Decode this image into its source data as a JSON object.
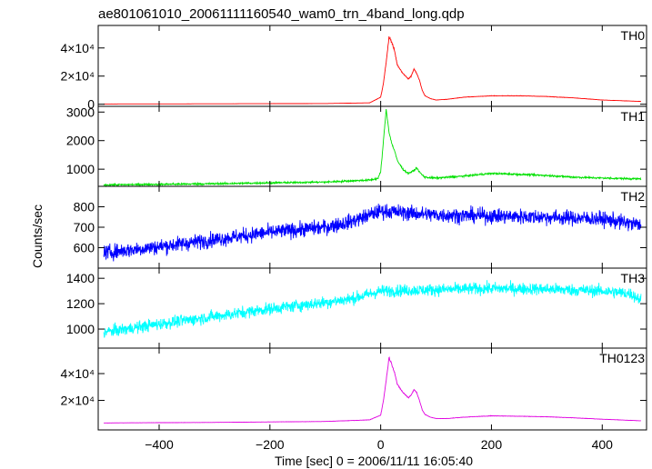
{
  "chart_data": {
    "type": "line",
    "title": "ae801061010_20061111160540_wam0_trn_4band_long.qdp",
    "xlabel": "Time [sec] 0 = 2006/11/11 16:05:40",
    "ylabel": "Counts/sec",
    "xlim": [
      -510,
      480
    ],
    "x_ticks": [
      -400,
      -200,
      0,
      200,
      400
    ],
    "x_tick_labels": [
      "−400",
      "−200",
      "0",
      "200",
      "400"
    ],
    "grid": false,
    "series": [
      {
        "name": "TH0",
        "color": "#ff0000",
        "ylim": [
          -1500,
          56000
        ],
        "y_ticks": [
          0,
          20000,
          40000
        ],
        "y_tick_labels": [
          "0",
          "2×10⁴",
          "4×10⁴"
        ],
        "noise": 0.02,
        "x": [
          -500,
          -300,
          -100,
          -20,
          0,
          5,
          10,
          15,
          20,
          25,
          30,
          40,
          50,
          55,
          60,
          65,
          70,
          75,
          80,
          90,
          100,
          120,
          150,
          200,
          250,
          300,
          350,
          400,
          470
        ],
        "values": [
          200,
          300,
          500,
          1000,
          5000,
          15000,
          30000,
          48000,
          44000,
          38000,
          28000,
          22000,
          18000,
          20000,
          25000,
          22000,
          17000,
          10000,
          6000,
          4000,
          3000,
          3500,
          5000,
          6000,
          6000,
          5500,
          4500,
          3000,
          2000
        ]
      },
      {
        "name": "TH1",
        "color": "#00e000",
        "ylim": [
          400,
          3200
        ],
        "y_ticks": [
          1000,
          2000,
          3000
        ],
        "y_tick_labels": [
          "1000",
          "2000",
          "3000"
        ],
        "noise": 30,
        "x": [
          -500,
          -300,
          -100,
          -20,
          -5,
          0,
          5,
          10,
          15,
          20,
          25,
          30,
          40,
          50,
          60,
          65,
          70,
          75,
          80,
          90,
          100,
          150,
          200,
          250,
          300,
          350,
          400,
          470
        ],
        "values": [
          450,
          490,
          550,
          620,
          680,
          900,
          2000,
          3100,
          2300,
          1900,
          1650,
          1300,
          1000,
          850,
          950,
          1050,
          900,
          800,
          720,
          700,
          690,
          760,
          850,
          820,
          780,
          720,
          690,
          660
        ]
      },
      {
        "name": "TH2",
        "color": "#0000ff",
        "ylim": [
          500,
          900
        ],
        "y_ticks": [
          600,
          700,
          800
        ],
        "y_tick_labels": [
          "600",
          "700",
          "800"
        ],
        "noise": 35,
        "x": [
          -500,
          -400,
          -300,
          -200,
          -100,
          -50,
          0,
          50,
          100,
          200,
          300,
          400,
          470
        ],
        "values": [
          575,
          605,
          640,
          675,
          700,
          730,
          780,
          770,
          760,
          755,
          750,
          740,
          710
        ]
      },
      {
        "name": "TH3",
        "color": "#00ffff",
        "ylim": [
          850,
          1480
        ],
        "y_ticks": [
          1000,
          1200,
          1400
        ],
        "y_tick_labels": [
          "1000",
          "1200",
          "1400"
        ],
        "noise": 45,
        "x": [
          -500,
          -400,
          -300,
          -200,
          -100,
          -50,
          0,
          100,
          200,
          300,
          400,
          450,
          470
        ],
        "values": [
          975,
          1040,
          1100,
          1160,
          1210,
          1240,
          1300,
          1310,
          1320,
          1315,
          1300,
          1280,
          1230
        ]
      },
      {
        "name": "TH0123",
        "color": "#e000e0",
        "ylim": [
          -2000,
          59000
        ],
        "y_ticks": [
          20000,
          40000
        ],
        "y_tick_labels": [
          "2×10⁴",
          "4×10⁴"
        ],
        "noise": 0.015,
        "x": [
          -500,
          -300,
          -100,
          -20,
          0,
          5,
          10,
          15,
          20,
          25,
          30,
          40,
          50,
          55,
          60,
          65,
          70,
          75,
          80,
          90,
          100,
          120,
          150,
          200,
          250,
          300,
          350,
          400,
          470
        ],
        "values": [
          3200,
          3600,
          4300,
          5500,
          9000,
          20000,
          35000,
          52000,
          47000,
          41000,
          32000,
          26000,
          22000,
          24000,
          28000,
          26000,
          20000,
          13000,
          9500,
          7500,
          6500,
          6500,
          7500,
          8500,
          8200,
          7800,
          7000,
          6000,
          4800
        ]
      }
    ]
  }
}
